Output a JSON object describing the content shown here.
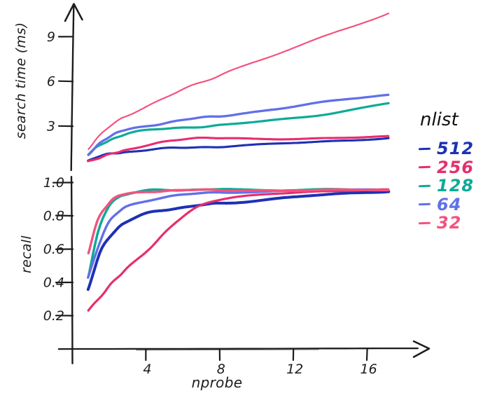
{
  "figure": {
    "background": "#ffffff",
    "axis_color": "#1c1c1c"
  },
  "legend": {
    "title": "nlist",
    "items": [
      {
        "label": "512",
        "color": "#1d31b4"
      },
      {
        "label": "256",
        "color": "#e62e6e"
      },
      {
        "label": "128",
        "color": "#0daa97"
      },
      {
        "label": "64",
        "color": "#6170e8"
      },
      {
        "label": "32",
        "color": "#f4527f"
      }
    ]
  },
  "chart_data": [
    {
      "type": "line",
      "title": "",
      "ylabel": "search time (ms)",
      "xlabel": "",
      "style": "hand-drawn (xkcd)",
      "grid": false,
      "x": [
        1,
        1.5,
        2,
        2.5,
        3,
        4,
        5,
        6,
        7,
        8,
        10,
        12,
        14,
        16
      ],
      "xticks": [
        4,
        8,
        12,
        16
      ],
      "yticks": [
        3,
        6,
        9
      ],
      "xlim": [
        0,
        17.5
      ],
      "ylim": [
        0,
        11.3
      ],
      "series": [
        {
          "name": "512",
          "color": "#1d31b4",
          "values": [
            0.7,
            0.95,
            1.1,
            1.22,
            1.3,
            1.42,
            1.5,
            1.56,
            1.62,
            1.67,
            1.78,
            1.9,
            2.05,
            2.25
          ]
        },
        {
          "name": "256",
          "color": "#e62e6e",
          "values": [
            0.68,
            0.85,
            1.05,
            1.25,
            1.45,
            1.78,
            2.0,
            2.12,
            2.2,
            2.22,
            2.18,
            2.15,
            2.2,
            2.3
          ]
        },
        {
          "name": "128",
          "color": "#0daa97",
          "values": [
            1.05,
            1.65,
            2.05,
            2.3,
            2.5,
            2.72,
            2.85,
            2.95,
            3.0,
            3.1,
            3.35,
            3.65,
            4.1,
            4.55
          ]
        },
        {
          "name": "64",
          "color": "#6170e8",
          "values": [
            1.1,
            1.8,
            2.25,
            2.55,
            2.8,
            3.05,
            3.25,
            3.45,
            3.6,
            3.75,
            4.1,
            4.45,
            4.8,
            5.1
          ]
        },
        {
          "name": "32",
          "color": "#f4527f",
          "values": [
            1.5,
            2.3,
            2.9,
            3.35,
            3.75,
            4.4,
            5.0,
            5.6,
            6.1,
            6.7,
            7.6,
            8.6,
            9.6,
            10.6
          ]
        }
      ]
    },
    {
      "type": "line",
      "title": "",
      "ylabel": "recall",
      "xlabel": "nprobe",
      "style": "hand-drawn (xkcd)",
      "grid": false,
      "x": [
        1,
        1.5,
        2,
        2.5,
        3,
        4,
        5,
        6,
        7,
        8,
        10,
        12,
        14,
        16
      ],
      "xticks": [
        4,
        8,
        12,
        16
      ],
      "yticks": [
        0.2,
        0.4,
        0.6,
        0.8,
        1.0
      ],
      "xlim": [
        0,
        17.5
      ],
      "ylim": [
        0,
        1.05
      ],
      "series": [
        {
          "name": "512",
          "color": "#1d31b4",
          "values": [
            0.36,
            0.55,
            0.66,
            0.73,
            0.77,
            0.815,
            0.84,
            0.855,
            0.868,
            0.878,
            0.9,
            0.918,
            0.935,
            0.95
          ]
        },
        {
          "name": "256",
          "color": "#e62e6e",
          "values": [
            0.235,
            0.3,
            0.37,
            0.43,
            0.49,
            0.6,
            0.72,
            0.82,
            0.875,
            0.905,
            0.935,
            0.945,
            0.95,
            0.953
          ]
        },
        {
          "name": "128",
          "color": "#0daa97",
          "values": [
            0.44,
            0.7,
            0.85,
            0.91,
            0.935,
            0.95,
            0.955,
            0.957,
            0.957,
            0.957,
            0.957,
            0.956,
            0.955,
            0.955
          ]
        },
        {
          "name": "64",
          "color": "#6170e8",
          "values": [
            0.43,
            0.62,
            0.75,
            0.82,
            0.86,
            0.895,
            0.915,
            0.928,
            0.937,
            0.943,
            0.949,
            0.952,
            0.953,
            0.954
          ]
        },
        {
          "name": "32",
          "color": "#f4527f",
          "values": [
            0.58,
            0.78,
            0.87,
            0.915,
            0.935,
            0.947,
            0.951,
            0.953,
            0.954,
            0.954,
            0.954,
            0.953,
            0.953,
            0.953
          ]
        }
      ]
    }
  ]
}
